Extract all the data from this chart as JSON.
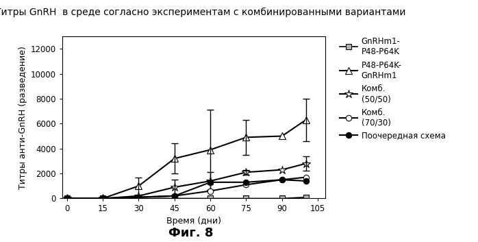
{
  "title": "Титры GnRH  в среде согласно экспериментам с комбинированными вариантами",
  "xlabel": "Время (дни)",
  "ylabel": "Титры анти-GnRH (разведение)",
  "fig_caption": "Фиг. 8",
  "series": [
    {
      "name": "GnRHm1-\nP48-P64K",
      "x": [
        0,
        15,
        30,
        45,
        60,
        75,
        90,
        100
      ],
      "y": [
        0,
        0,
        0,
        0,
        0,
        0,
        0,
        100
      ],
      "yerr": [
        0,
        0,
        0,
        0,
        0,
        0,
        0,
        0
      ],
      "marker": "s",
      "marker_face": "#b0b0b0",
      "marker_size": 6,
      "color": "#000000",
      "linestyle": "-",
      "linewidth": 1.2
    },
    {
      "name": "P48-P64K-\nGnRHm1",
      "x": [
        0,
        15,
        30,
        45,
        60,
        75,
        90,
        100
      ],
      "y": [
        0,
        0,
        1000,
        3200,
        3900,
        4900,
        5000,
        6300
      ],
      "yerr": [
        0,
        0,
        700,
        1200,
        3200,
        1400,
        0,
        1700
      ],
      "marker": "^",
      "marker_face": "#ffffff",
      "marker_size": 7,
      "color": "#000000",
      "linestyle": "-",
      "linewidth": 1.5
    },
    {
      "name": "Комб.\n(50/50)",
      "x": [
        0,
        15,
        30,
        45,
        60,
        75,
        90,
        100
      ],
      "y": [
        0,
        0,
        200,
        900,
        1400,
        2100,
        2300,
        2800
      ],
      "yerr": [
        0,
        0,
        0,
        600,
        700,
        200,
        0,
        600
      ],
      "marker": "*",
      "marker_face": "#ffffff",
      "marker_size": 9,
      "color": "#000000",
      "linestyle": "-",
      "linewidth": 1.5
    },
    {
      "name": "Комб.\n(70/30)",
      "x": [
        0,
        15,
        30,
        45,
        60,
        75,
        90,
        100
      ],
      "y": [
        0,
        0,
        100,
        200,
        600,
        1100,
        1500,
        1700
      ],
      "yerr": [
        0,
        0,
        0,
        0,
        0,
        0,
        0,
        0
      ],
      "marker": "o",
      "marker_face": "#ffffff",
      "marker_size": 6,
      "color": "#000000",
      "linestyle": "-",
      "linewidth": 1.5
    },
    {
      "name": "Поочередная схема",
      "x": [
        0,
        15,
        30,
        45,
        60,
        75,
        90,
        100
      ],
      "y": [
        0,
        0,
        100,
        200,
        1300,
        1300,
        1500,
        1400
      ],
      "yerr": [
        0,
        0,
        0,
        0,
        0,
        0,
        0,
        0
      ],
      "marker": "o",
      "marker_face": "#000000",
      "marker_size": 6,
      "color": "#000000",
      "linestyle": "-",
      "linewidth": 1.5
    }
  ],
  "ylim": [
    0,
    13000
  ],
  "xlim": [
    -2,
    108
  ],
  "xticks": [
    0,
    15,
    30,
    45,
    60,
    75,
    90,
    105
  ],
  "yticks": [
    0,
    2000,
    4000,
    6000,
    8000,
    10000,
    12000
  ],
  "background_color": "#ffffff",
  "title_fontsize": 10,
  "label_fontsize": 9,
  "tick_fontsize": 8.5,
  "legend_fontsize": 8.5,
  "caption_fontsize": 13
}
